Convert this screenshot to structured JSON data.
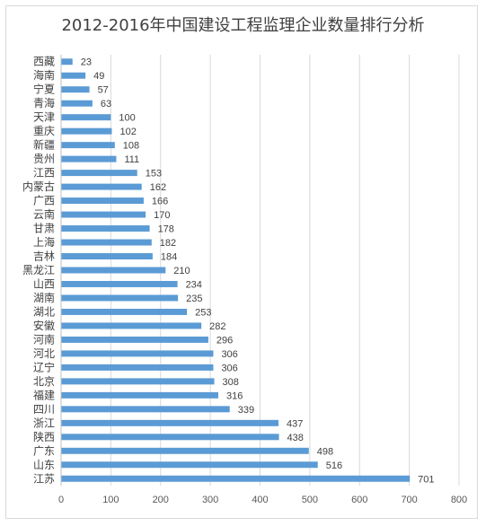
{
  "chart_data": {
    "type": "bar",
    "orientation": "horizontal",
    "title": "2012-2016年中国建设工程监理企业数量排行分析",
    "categories": [
      "西藏",
      "海南",
      "宁夏",
      "青海",
      "天津",
      "重庆",
      "新疆",
      "贵州",
      "江西",
      "内蒙古",
      "广西",
      "云南",
      "甘肃",
      "上海",
      "吉林",
      "黑龙江",
      "山西",
      "湖南",
      "湖北",
      "安徽",
      "河南",
      "河北",
      "辽宁",
      "北京",
      "福建",
      "四川",
      "浙江",
      "陕西",
      "广东",
      "山东",
      "江苏"
    ],
    "values": [
      23,
      49,
      57,
      63,
      100,
      102,
      108,
      111,
      153,
      162,
      166,
      170,
      178,
      182,
      184,
      210,
      234,
      235,
      253,
      282,
      296,
      306,
      306,
      308,
      316,
      339,
      437,
      438,
      498,
      516,
      701
    ],
    "value_labels": [
      "23",
      "49",
      "57",
      "63",
      "100",
      "102",
      "108",
      "111",
      "153",
      "162",
      "166",
      "170",
      "178",
      "182",
      "184",
      "210",
      "234",
      "235",
      "253",
      "282",
      "296",
      "306",
      "306",
      "308",
      "316",
      "339",
      "437",
      "438",
      "498",
      "516",
      "701"
    ],
    "xticks": [
      "0",
      "100",
      "200",
      "300",
      "400",
      "500",
      "600",
      "700",
      "800"
    ],
    "xlim": [
      0,
      800
    ],
    "grid": true,
    "bar_color": "#5b9bd5",
    "grid_color": "#d9d9d9"
  }
}
